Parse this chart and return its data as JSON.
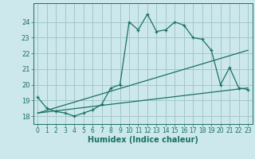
{
  "title": "",
  "xlabel": "Humidex (Indice chaleur)",
  "xlim": [
    -0.5,
    23.5
  ],
  "ylim": [
    17.5,
    25.2
  ],
  "background_color": "#cce8ec",
  "grid_color": "#a0c8cc",
  "line_color": "#1a7060",
  "yticks": [
    18,
    19,
    20,
    21,
    22,
    23,
    24
  ],
  "xticks": [
    0,
    1,
    2,
    3,
    4,
    5,
    6,
    7,
    8,
    9,
    10,
    11,
    12,
    13,
    14,
    15,
    16,
    17,
    18,
    19,
    20,
    21,
    22,
    23
  ],
  "main_x": [
    0,
    1,
    2,
    3,
    4,
    5,
    6,
    7,
    8,
    9,
    10,
    11,
    12,
    13,
    14,
    15,
    16,
    17,
    18,
    19,
    20,
    21,
    22,
    23
  ],
  "main_y": [
    19.2,
    18.5,
    18.3,
    18.2,
    18.0,
    18.2,
    18.4,
    18.75,
    19.8,
    20.0,
    24.0,
    23.5,
    24.5,
    23.4,
    23.5,
    24.0,
    23.8,
    23.0,
    22.9,
    22.2,
    20.0,
    21.1,
    19.8,
    19.7
  ],
  "line2_x": [
    0,
    23
  ],
  "line2_y": [
    18.2,
    22.2
  ],
  "line3_x": [
    0,
    23
  ],
  "line3_y": [
    18.2,
    19.8
  ]
}
